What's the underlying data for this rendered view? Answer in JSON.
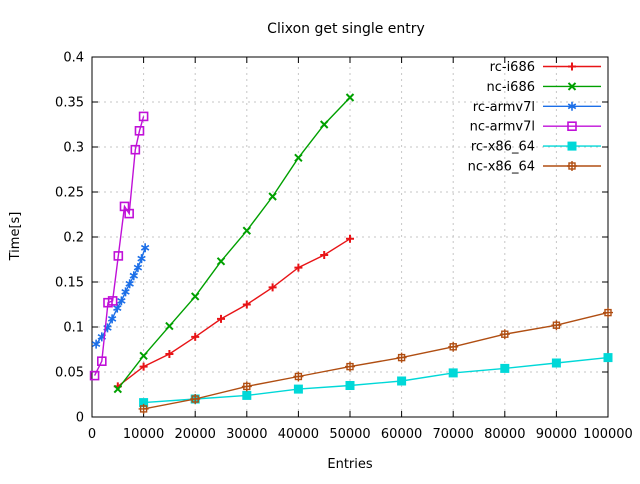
{
  "chart_data": {
    "type": "line",
    "title": "Clixon get single entry",
    "xlabel": "Entries",
    "ylabel": "Time[s]",
    "xlim": [
      0,
      100000
    ],
    "ylim": [
      0,
      0.4
    ],
    "grid": true,
    "legend_position": "inside-top-right",
    "background_color": "#ffffff",
    "grid_color": "#c6c6c6",
    "axis_color": "#000000",
    "x_ticks": [
      {
        "value": 0,
        "label": "0"
      },
      {
        "value": 10000,
        "label": "10000"
      },
      {
        "value": 20000,
        "label": "20000"
      },
      {
        "value": 30000,
        "label": "30000"
      },
      {
        "value": 40000,
        "label": "40000"
      },
      {
        "value": 50000,
        "label": "50000"
      },
      {
        "value": 60000,
        "label": "60000"
      },
      {
        "value": 70000,
        "label": "70000"
      },
      {
        "value": 80000,
        "label": "80000"
      },
      {
        "value": 90000,
        "label": "90000"
      },
      {
        "value": 100000,
        "label": "100000"
      }
    ],
    "y_ticks": [
      {
        "value": 0,
        "label": "0"
      },
      {
        "value": 0.05,
        "label": "0.05"
      },
      {
        "value": 0.1,
        "label": "0.1"
      },
      {
        "value": 0.15,
        "label": "0.15"
      },
      {
        "value": 0.2,
        "label": "0.2"
      },
      {
        "value": 0.25,
        "label": "0.25"
      },
      {
        "value": 0.3,
        "label": "0.3"
      },
      {
        "value": 0.35,
        "label": "0.35"
      },
      {
        "value": 0.4,
        "label": "0.4"
      }
    ],
    "series": [
      {
        "name": "rc-i686",
        "color": "#e81417",
        "marker": "plus",
        "x": [
          5000,
          10000,
          15000,
          20000,
          25000,
          30000,
          35000,
          40000,
          45000,
          50000
        ],
        "y": [
          0.034,
          0.056,
          0.07,
          0.089,
          0.109,
          0.125,
          0.144,
          0.166,
          0.18,
          0.198
        ]
      },
      {
        "name": "nc-i686",
        "color": "#00a000",
        "marker": "cross",
        "x": [
          5000,
          10000,
          15000,
          20000,
          25000,
          30000,
          35000,
          40000,
          45000,
          50000
        ],
        "y": [
          0.031,
          0.068,
          0.101,
          0.134,
          0.173,
          0.207,
          0.245,
          0.288,
          0.325,
          0.355
        ]
      },
      {
        "name": "rc-armv7l",
        "color": "#1c6fe8",
        "marker": "asterisk",
        "x": [
          800,
          1900,
          3000,
          3900,
          4900,
          5700,
          6500,
          7300,
          8100,
          8900,
          9600,
          10300
        ],
        "y": [
          0.081,
          0.089,
          0.099,
          0.109,
          0.121,
          0.129,
          0.139,
          0.148,
          0.157,
          0.166,
          0.176,
          0.188
        ]
      },
      {
        "name": "nc-armv7l",
        "color": "#c010d8",
        "marker": "open-square",
        "x": [
          500,
          1900,
          3100,
          4000,
          5100,
          6300,
          7200,
          8400,
          9200,
          10000
        ],
        "y": [
          0.046,
          0.062,
          0.127,
          0.129,
          0.179,
          0.234,
          0.226,
          0.297,
          0.318,
          0.334
        ]
      },
      {
        "name": "rc-x86_64",
        "color": "#00d8d8",
        "marker": "filled-square",
        "x": [
          10000,
          20000,
          30000,
          40000,
          50000,
          60000,
          70000,
          80000,
          90000,
          100000
        ],
        "y": [
          0.016,
          0.02,
          0.024,
          0.031,
          0.035,
          0.04,
          0.049,
          0.054,
          0.06,
          0.066
        ]
      },
      {
        "name": "nc-x86_64",
        "color": "#b04e12",
        "marker": "square-plus",
        "x": [
          10000,
          20000,
          30000,
          40000,
          50000,
          60000,
          70000,
          80000,
          90000,
          100000
        ],
        "y": [
          0.009,
          0.02,
          0.034,
          0.045,
          0.056,
          0.066,
          0.078,
          0.092,
          0.102,
          0.116
        ]
      }
    ]
  }
}
